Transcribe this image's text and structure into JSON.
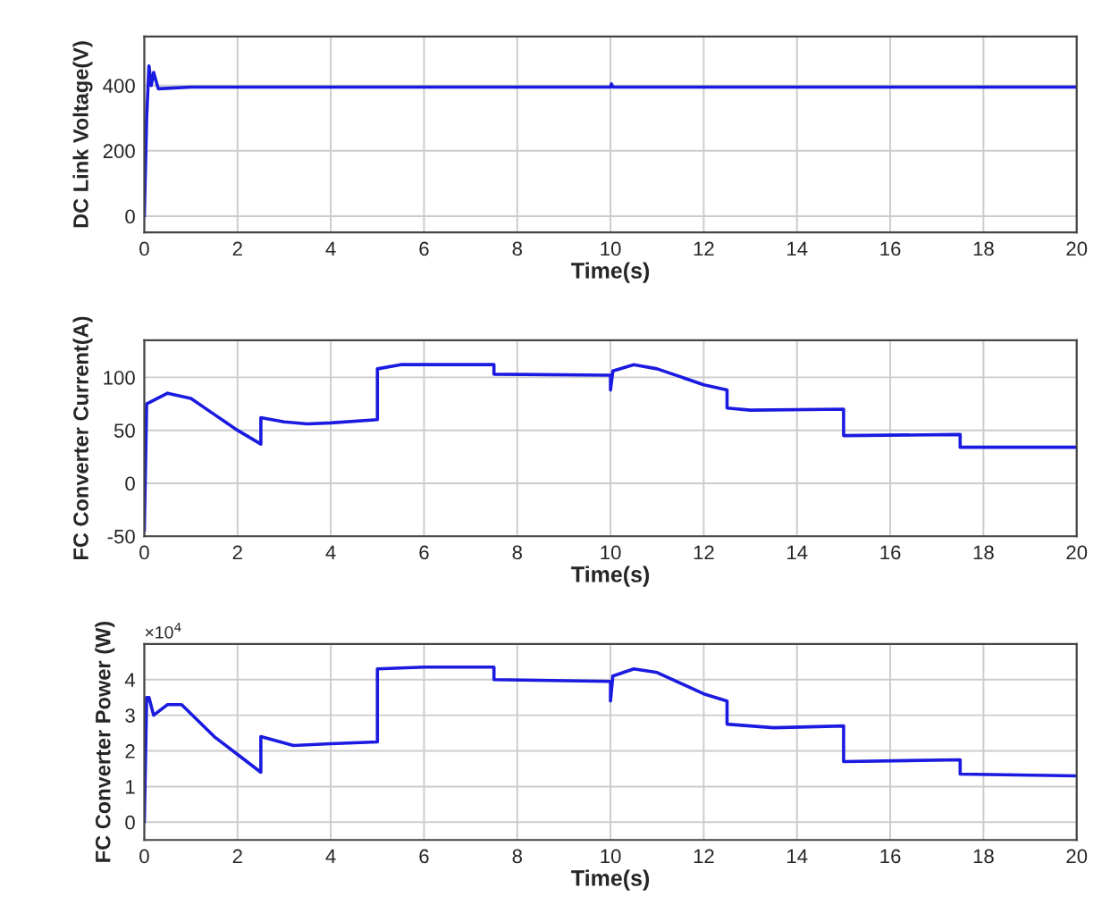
{
  "chart_data": [
    {
      "type": "line",
      "xlabel": "Time(s)",
      "ylabel": "DC Link Voltage(V)",
      "xlim": [
        0,
        20
      ],
      "xticks": [
        0,
        2,
        4,
        6,
        8,
        10,
        12,
        14,
        16,
        18,
        20
      ],
      "ylim": [
        -50,
        550
      ],
      "yticks": [
        0,
        200,
        400
      ],
      "grid": true,
      "series": [
        {
          "color": "#1a1ae0",
          "x": [
            0,
            0.05,
            0.1,
            0.15,
            0.2,
            0.3,
            1,
            10,
            10.02,
            10.05,
            20
          ],
          "values": [
            0,
            300,
            460,
            400,
            440,
            390,
            395,
            395,
            405,
            395,
            395
          ]
        }
      ]
    },
    {
      "type": "line",
      "xlabel": "Time(s)",
      "ylabel": "FC Converter Current(A)",
      "xlim": [
        0,
        20
      ],
      "xticks": [
        0,
        2,
        4,
        6,
        8,
        10,
        12,
        14,
        16,
        18,
        20
      ],
      "ylim": [
        -50,
        135
      ],
      "yticks": [
        -50,
        0,
        50,
        100
      ],
      "grid": true,
      "series": [
        {
          "color": "#1a1ae0",
          "x": [
            0,
            0.05,
            0.5,
            1,
            1.5,
            2,
            2.5,
            2.5,
            3,
            3.5,
            4,
            5,
            5,
            5.5,
            7.5,
            7.5,
            10,
            10,
            10.05,
            10.5,
            11,
            12,
            12.5,
            12.5,
            13,
            15,
            15,
            17.5,
            17.5,
            20
          ],
          "values": [
            -45,
            75,
            85,
            80,
            65,
            50,
            37,
            62,
            58,
            56,
            57,
            60,
            108,
            112,
            112,
            103,
            102,
            88,
            106,
            112,
            108,
            93,
            88,
            71,
            69,
            70,
            45,
            46,
            34,
            34
          ]
        }
      ]
    },
    {
      "type": "line",
      "xlabel": "Time(s)",
      "ylabel": "FC Converter Power (W)",
      "annotations": [
        "×10$^{4}$"
      ],
      "xlim": [
        0,
        20
      ],
      "xticks": [
        0,
        2,
        4,
        6,
        8,
        10,
        12,
        14,
        16,
        18,
        20
      ],
      "ylim": [
        -0.5,
        5
      ],
      "yticks": [
        0,
        1,
        2,
        3,
        4
      ],
      "grid": true,
      "series": [
        {
          "color": "#1a1ae0",
          "x": [
            0,
            0.05,
            0.1,
            0.2,
            0.5,
            0.8,
            1.5,
            2,
            2.5,
            2.5,
            3.2,
            4,
            5,
            5,
            6,
            7.5,
            7.5,
            10,
            10,
            10.05,
            10.5,
            11,
            12,
            12.5,
            12.5,
            13.5,
            15,
            15,
            17.5,
            17.5,
            20
          ],
          "values": [
            0,
            3.5,
            3.5,
            3.0,
            3.3,
            3.3,
            2.4,
            1.9,
            1.4,
            2.4,
            2.15,
            2.2,
            2.25,
            4.3,
            4.35,
            4.35,
            4.0,
            3.95,
            3.4,
            4.1,
            4.3,
            4.2,
            3.6,
            3.4,
            2.75,
            2.65,
            2.7,
            1.7,
            1.75,
            1.35,
            1.3
          ]
        }
      ]
    }
  ]
}
